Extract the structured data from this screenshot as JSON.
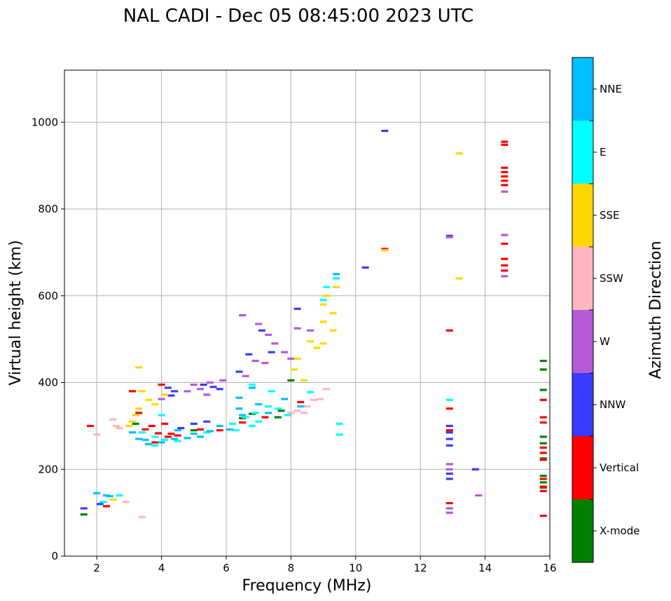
{
  "chart_data": {
    "type": "scatter",
    "title": "NAL CADI - Dec 05 08:45:00 2023 UTC",
    "xlabel": "Frequency (MHz)",
    "ylabel": "Virtual height (km)",
    "xlim": [
      1,
      16
    ],
    "ylim": [
      0,
      1120
    ],
    "xticks": [
      2,
      4,
      6,
      8,
      10,
      12,
      14,
      16
    ],
    "yticks": [
      0,
      200,
      400,
      600,
      800,
      1000
    ],
    "grid": true,
    "colorbar": {
      "label": "Azimuth Direction",
      "categories": [
        "X-mode",
        "Vertical",
        "NNW",
        "W",
        "SSW",
        "SSE",
        "E",
        "NNE"
      ],
      "colors": [
        "#008000",
        "#ff0000",
        "#3a3aff",
        "#b45ad6",
        "#ffb6c1",
        "#ffd700",
        "#00ffff",
        "#00bfff"
      ]
    },
    "series": [
      {
        "name": "X-mode",
        "points": [
          [
            1.6,
            96
          ],
          [
            15.8,
            450
          ],
          [
            15.8,
            430
          ],
          [
            15.8,
            383
          ],
          [
            15.8,
            275
          ],
          [
            15.8,
            260
          ],
          [
            15.8,
            225
          ],
          [
            15.8,
            185
          ],
          [
            15.8,
            170
          ],
          [
            15.8,
            158
          ],
          [
            7.7,
            335
          ],
          [
            7.6,
            320
          ],
          [
            6.8,
            328
          ],
          [
            6.5,
            318
          ],
          [
            5.0,
            290
          ],
          [
            3.2,
            305
          ],
          [
            8.0,
            405
          ]
        ]
      },
      {
        "name": "Vertical",
        "points": [
          [
            1.8,
            300
          ],
          [
            2.3,
            115
          ],
          [
            3.3,
            330
          ],
          [
            3.5,
            292
          ],
          [
            3.7,
            300
          ],
          [
            3.9,
            283
          ],
          [
            4.0,
            395
          ],
          [
            4.2,
            275
          ],
          [
            4.3,
            282
          ],
          [
            4.5,
            278
          ],
          [
            4.1,
            305
          ],
          [
            5.2,
            292
          ],
          [
            5.8,
            290
          ],
          [
            6.5,
            308
          ],
          [
            7.2,
            320
          ],
          [
            8.3,
            355
          ],
          [
            12.9,
            520
          ],
          [
            12.9,
            340
          ],
          [
            12.9,
            290
          ],
          [
            12.9,
            122
          ],
          [
            14.6,
            955
          ],
          [
            14.6,
            948
          ],
          [
            14.6,
            895
          ],
          [
            14.6,
            885
          ],
          [
            14.6,
            875
          ],
          [
            14.6,
            865
          ],
          [
            14.6,
            855
          ],
          [
            14.6,
            720
          ],
          [
            14.6,
            685
          ],
          [
            14.6,
            670
          ],
          [
            14.6,
            658
          ],
          [
            15.8,
            360
          ],
          [
            15.8,
            320
          ],
          [
            15.8,
            308
          ],
          [
            15.8,
            250
          ],
          [
            15.8,
            238
          ],
          [
            15.8,
            222
          ],
          [
            15.8,
            178
          ],
          [
            15.8,
            160
          ],
          [
            15.8,
            150
          ],
          [
            15.8,
            93
          ],
          [
            10.9,
            708
          ],
          [
            3.1,
            380
          ],
          [
            3.8,
            262
          ]
        ]
      },
      {
        "name": "NNW",
        "points": [
          [
            4.2,
            388
          ],
          [
            4.4,
            380
          ],
          [
            5.3,
            395
          ],
          [
            5.6,
            390
          ],
          [
            5.8,
            385
          ],
          [
            4.6,
            295
          ],
          [
            5.0,
            305
          ],
          [
            5.4,
            310
          ],
          [
            6.7,
            465
          ],
          [
            7.1,
            520
          ],
          [
            7.4,
            470
          ],
          [
            8.2,
            570
          ],
          [
            10.3,
            665
          ],
          [
            10.9,
            980
          ],
          [
            12.9,
            738
          ],
          [
            12.9,
            300
          ],
          [
            12.9,
            285
          ],
          [
            12.9,
            270
          ],
          [
            12.9,
            255
          ],
          [
            12.9,
            190
          ],
          [
            12.9,
            178
          ],
          [
            13.7,
            200
          ],
          [
            1.6,
            110
          ],
          [
            2.1,
            120
          ],
          [
            4.3,
            370
          ],
          [
            6.4,
            425
          ]
        ]
      },
      {
        "name": "W",
        "points": [
          [
            5.0,
            395
          ],
          [
            5.2,
            385
          ],
          [
            5.4,
            372
          ],
          [
            5.5,
            400
          ],
          [
            4.8,
            380
          ],
          [
            6.6,
            415
          ],
          [
            6.9,
            450
          ],
          [
            7.2,
            445
          ],
          [
            7.5,
            490
          ],
          [
            6.5,
            555
          ],
          [
            7.0,
            535
          ],
          [
            7.3,
            510
          ],
          [
            7.8,
            470
          ],
          [
            8.0,
            455
          ],
          [
            8.2,
            525
          ],
          [
            8.6,
            520
          ],
          [
            12.9,
            735
          ],
          [
            12.9,
            212
          ],
          [
            12.9,
            200
          ],
          [
            12.9,
            110
          ],
          [
            12.9,
            100
          ],
          [
            13.8,
            140
          ],
          [
            14.6,
            740
          ],
          [
            14.6,
            645
          ],
          [
            14.6,
            840
          ],
          [
            5.9,
            405
          ],
          [
            4.0,
            362
          ]
        ]
      },
      {
        "name": "SSW",
        "points": [
          [
            2.5,
            315
          ],
          [
            2.6,
            300
          ],
          [
            2.7,
            295
          ],
          [
            2.0,
            280
          ],
          [
            8.2,
            335
          ],
          [
            8.4,
            330
          ],
          [
            8.5,
            345
          ],
          [
            8.7,
            360
          ],
          [
            8.9,
            362
          ],
          [
            9.1,
            385
          ],
          [
            3.4,
            90
          ],
          [
            2.9,
            125
          ],
          [
            8.0,
            330
          ]
        ]
      },
      {
        "name": "SSE",
        "points": [
          [
            3.1,
            310
          ],
          [
            3.2,
            325
          ],
          [
            3.3,
            340
          ],
          [
            3.0,
            300
          ],
          [
            3.3,
            435
          ],
          [
            3.4,
            380
          ],
          [
            3.6,
            360
          ],
          [
            3.8,
            350
          ],
          [
            4.1,
            372
          ],
          [
            8.1,
            430
          ],
          [
            8.2,
            455
          ],
          [
            8.6,
            495
          ],
          [
            8.8,
            480
          ],
          [
            9.0,
            490
          ],
          [
            9.0,
            540
          ],
          [
            9.0,
            580
          ],
          [
            9.1,
            600
          ],
          [
            9.3,
            560
          ],
          [
            9.3,
            520
          ],
          [
            9.4,
            620
          ],
          [
            10.9,
            705
          ],
          [
            13.2,
            928
          ],
          [
            13.2,
            640
          ],
          [
            2.5,
            130
          ],
          [
            8.4,
            405
          ]
        ]
      },
      {
        "name": "E",
        "points": [
          [
            2.7,
            140
          ],
          [
            2.2,
            125
          ],
          [
            3.4,
            285
          ],
          [
            3.8,
            275
          ],
          [
            4.1,
            268
          ],
          [
            4.5,
            265
          ],
          [
            5.4,
            285
          ],
          [
            6.2,
            305
          ],
          [
            6.6,
            320
          ],
          [
            6.9,
            330
          ],
          [
            7.3,
            345
          ],
          [
            7.6,
            340
          ],
          [
            7.9,
            325
          ],
          [
            6.3,
            290
          ],
          [
            6.8,
            300
          ],
          [
            7.0,
            310
          ],
          [
            8.6,
            378
          ],
          [
            9.0,
            590
          ],
          [
            9.1,
            620
          ],
          [
            9.4,
            640
          ],
          [
            9.5,
            305
          ],
          [
            9.5,
            280
          ],
          [
            12.9,
            360
          ],
          [
            6.8,
            395
          ],
          [
            7.4,
            380
          ],
          [
            4.0,
            325
          ],
          [
            3.8,
            255
          ]
        ]
      },
      {
        "name": "NNE",
        "points": [
          [
            2.0,
            145
          ],
          [
            2.4,
            138
          ],
          [
            3.3,
            270
          ],
          [
            3.5,
            268
          ],
          [
            3.6,
            258
          ],
          [
            4.0,
            262
          ],
          [
            4.4,
            270
          ],
          [
            4.8,
            272
          ],
          [
            5.0,
            282
          ],
          [
            5.5,
            288
          ],
          [
            5.8,
            300
          ],
          [
            6.1,
            292
          ],
          [
            6.4,
            340
          ],
          [
            6.5,
            325
          ],
          [
            7.0,
            350
          ],
          [
            7.3,
            330
          ],
          [
            7.8,
            362
          ],
          [
            8.3,
            345
          ],
          [
            9.4,
            650
          ],
          [
            6.4,
            365
          ],
          [
            4.5,
            290
          ],
          [
            5.2,
            275
          ],
          [
            2.3,
            140
          ],
          [
            3.1,
            285
          ],
          [
            6.8,
            388
          ]
        ]
      }
    ]
  }
}
